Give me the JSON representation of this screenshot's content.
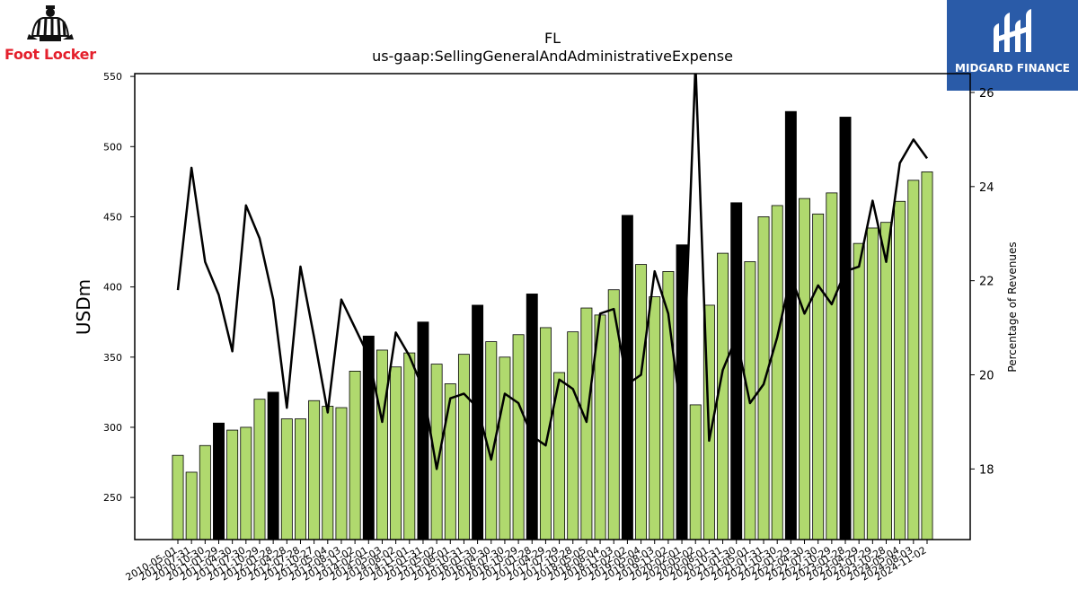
{
  "logos": {
    "left_brand": "Foot Locker",
    "right_brand": "MIDGARD FINANCE"
  },
  "chart_data": {
    "type": "bar",
    "title": "FL",
    "subtitle": "us-gaap:SellingGeneralAndAdministrativeExpense",
    "ylabel": "USDm",
    "y2label": "Percentage of Revenues",
    "ylim": [
      220,
      552
    ],
    "y2lim": [
      16.5,
      26.4
    ],
    "yticks": [
      250,
      300,
      350,
      400,
      450,
      500,
      550
    ],
    "y2ticks": [
      18,
      20,
      22,
      24,
      26
    ],
    "categories": [
      "2010-05-01",
      "2010-07-31",
      "2010-10-30",
      "2011-01-29",
      "2011-04-30",
      "2011-07-30",
      "2011-10-29",
      "2012-01-28",
      "2012-04-28",
      "2012-07-28",
      "2012-10-27",
      "2013-05-04",
      "2013-08-03",
      "2013-11-02",
      "2014-02-01",
      "2014-05-03",
      "2014-08-02",
      "2014-11-01",
      "2015-01-31",
      "2015-05-02",
      "2015-08-01",
      "2015-10-31",
      "2016-01-30",
      "2016-04-30",
      "2016-07-30",
      "2016-10-29",
      "2017-01-28",
      "2017-04-29",
      "2017-07-29",
      "2017-10-28",
      "2018-05-05",
      "2018-08-04",
      "2018-11-03",
      "2019-02-02",
      "2019-05-04",
      "2019-08-03",
      "2019-11-02",
      "2020-02-01",
      "2020-05-02",
      "2020-08-01",
      "2020-10-31",
      "2021-01-30",
      "2021-05-01",
      "2021-07-31",
      "2021-10-30",
      "2022-01-29",
      "2022-04-30",
      "2022-07-30",
      "2022-10-29",
      "2023-01-28",
      "2023-04-29",
      "2023-07-29",
      "2023-10-28",
      "2024-05-04",
      "2024-08-03",
      "2024-11-02"
    ],
    "xtick_labels": [
      "2010-05-01",
      "2010-07-31",
      "2010-10-30",
      "2011-01-29",
      "2011-04-30",
      "2011-07-30",
      "2011-10-29",
      "2012-01-28",
      "2012-04-28",
      "2012-07-28",
      "2012-10-27",
      "2013-05-04",
      "2013-08-03",
      "2013-11-02",
      "2014-02-01",
      "2014-05-03",
      "2014-08-02",
      "2014-11-01",
      "2015-01-31",
      "2015-05-02",
      "2015-08-01",
      "2015-10-31",
      "2016-01-30",
      "2016-04-30",
      "2016-07-30",
      "2016-10-29",
      "2017-01-28",
      "2017-04-29",
      "2017-07-29",
      "2017-10-28",
      "2018-05-05",
      "2018-08-04",
      "2018-11-03",
      "2019-02-02",
      "2019-05-04",
      "2019-08-03",
      "2019-11-02",
      "2020-02-01",
      "2020-05-02",
      "2020-08-01",
      "2020-10-31",
      "2021-01-30",
      "2021-05-01",
      "2021-07-31",
      "2021-10-30",
      "2022-01-29",
      "2022-04-30",
      "2022-07-30",
      "2022-10-29",
      "2023-01-28",
      "2023-04-29",
      "2023-07-29",
      "2023-10-28",
      "2024-05-04",
      "2024-08-03",
      "2024-11-02"
    ],
    "series": [
      {
        "values": [
          280,
          268,
          287,
          303,
          298,
          300,
          320,
          325,
          306,
          306,
          319,
          315,
          314,
          340,
          365,
          355,
          343,
          353,
          375,
          345,
          331,
          352,
          387,
          361,
          350,
          366,
          395,
          371,
          339,
          368,
          385,
          380,
          398,
          451,
          416,
          393,
          411,
          430,
          316,
          387,
          424,
          460,
          418,
          450,
          458,
          525,
          463,
          452,
          467,
          521,
          431,
          442,
          446,
          461,
          476,
          482
        ],
        "fiscal_q4": [
          false,
          false,
          false,
          true,
          false,
          false,
          false,
          true,
          false,
          false,
          false,
          false,
          false,
          false,
          true,
          false,
          false,
          false,
          true,
          false,
          false,
          false,
          true,
          false,
          false,
          false,
          true,
          false,
          false,
          false,
          false,
          false,
          false,
          true,
          false,
          false,
          false,
          true,
          false,
          false,
          false,
          true,
          false,
          false,
          false,
          true,
          false,
          false,
          false,
          true,
          false,
          false,
          false,
          false,
          false,
          false
        ]
      },
      {
        "axis": "right",
        "values": [
          21.8,
          24.4,
          22.4,
          21.7,
          20.5,
          23.6,
          22.9,
          21.6,
          19.3,
          22.3,
          20.8,
          19.2,
          21.6,
          21.0,
          20.4,
          19.0,
          20.9,
          20.4,
          19.7,
          18.0,
          19.5,
          19.6,
          19.3,
          18.2,
          19.6,
          19.4,
          18.7,
          18.5,
          19.9,
          19.7,
          19.0,
          21.3,
          21.4,
          19.8,
          20.0,
          22.2,
          21.3,
          19.0,
          26.6,
          18.6,
          20.1,
          20.8,
          19.4,
          19.8,
          20.8,
          22.1,
          21.3,
          21.9,
          21.5,
          22.2,
          22.3,
          23.7,
          22.4,
          24.5,
          25.0,
          24.6
        ]
      }
    ],
    "colors": {
      "bar": "#b0d96e",
      "bar_q4": "#000000",
      "line": "#000000"
    },
    "grid": false
  }
}
